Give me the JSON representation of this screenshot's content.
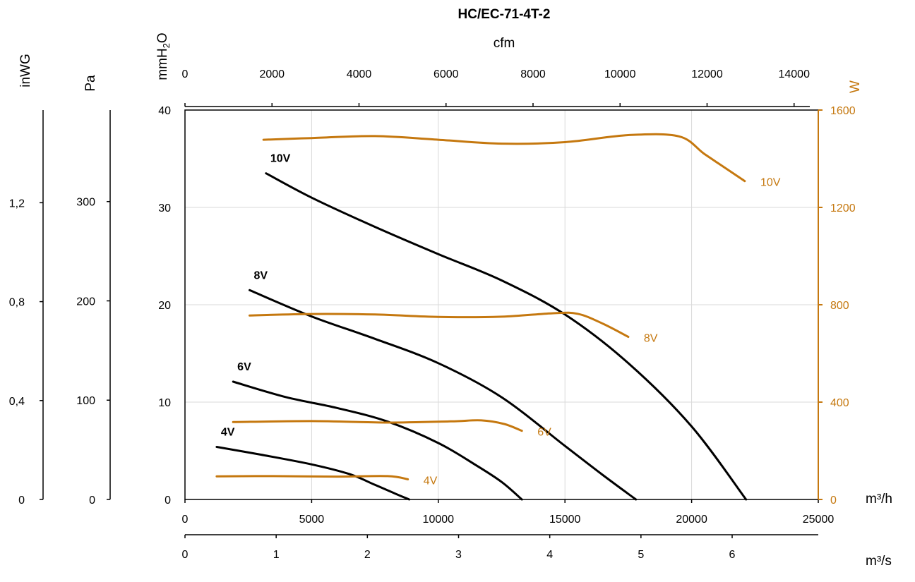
{
  "chart_data": {
    "type": "line",
    "title": "HC/EC-71-4T-2",
    "colors": {
      "pressure": "#000000",
      "power": "#c5780f"
    },
    "x_axes": {
      "primary": {
        "label": "m³/h",
        "range": [
          0,
          25000
        ],
        "ticks": [
          "0",
          "5000",
          "10000",
          "15000",
          "20000",
          "25000"
        ]
      },
      "secondary_ms": {
        "label": "m³/s",
        "ticks": [
          "0",
          "1",
          "2",
          "3",
          "4",
          "5",
          "6"
        ],
        "tick_values_m3h": [
          0,
          3600,
          7200,
          10800,
          14400,
          18000,
          21600
        ],
        "range_m3h": [
          0,
          25000
        ]
      },
      "top_cfm": {
        "label": "cfm",
        "ticks": [
          "0",
          "2000",
          "4000",
          "6000",
          "8000",
          "10000",
          "12000",
          "14000"
        ],
        "tick_values_m3h": [
          0,
          3398,
          6796,
          10194,
          13592,
          16990,
          20388,
          23786
        ],
        "range_m3h": [
          0,
          24400
        ]
      }
    },
    "y_axes": {
      "primary": {
        "label_main": "mmH",
        "label_sub": "2",
        "label_tail": "O",
        "range": [
          0,
          40
        ],
        "ticks": [
          "0",
          "10",
          "20",
          "30",
          "40"
        ]
      },
      "pa": {
        "label": "Pa",
        "ticks": [
          "0",
          "100",
          "200",
          "300"
        ],
        "tick_values_mmH2O": [
          0,
          10.2,
          20.4,
          30.6
        ],
        "range_mmH2O": [
          0,
          40
        ]
      },
      "inwg": {
        "label": "inWG",
        "ticks": [
          "0",
          "0,4",
          "0,8",
          "1,2"
        ],
        "tick_values_mmH2O": [
          0,
          10.16,
          20.32,
          30.48
        ],
        "range_mmH2O": [
          0,
          40
        ]
      },
      "power": {
        "label": "W",
        "range": [
          0,
          1600
        ],
        "ticks": [
          "0",
          "400",
          "800",
          "1200",
          "1600"
        ]
      }
    },
    "grid": true,
    "series": [
      {
        "name": "10V",
        "kind": "pressure",
        "x": [
          3200,
          5000,
          7500,
          10000,
          12500,
          15000,
          17500,
          20000,
          22150
        ],
        "y": [
          33.5,
          31,
          28,
          25.2,
          22.5,
          19,
          14,
          7.5,
          0
        ]
      },
      {
        "name": "8V",
        "kind": "pressure",
        "x": [
          2550,
          5000,
          7500,
          10000,
          12500,
          15000,
          16500,
          17800
        ],
        "y": [
          21.5,
          18.8,
          16.5,
          14,
          10.5,
          5.5,
          2.5,
          0
        ]
      },
      {
        "name": "6V",
        "kind": "pressure",
        "x": [
          1900,
          4000,
          6000,
          8000,
          10000,
          11500,
          12500,
          13300
        ],
        "y": [
          12.1,
          10.5,
          9.4,
          8,
          5.8,
          3.5,
          1.8,
          0
        ]
      },
      {
        "name": "4V",
        "kind": "pressure",
        "x": [
          1250,
          3000,
          5000,
          6500,
          7500,
          8300,
          8850
        ],
        "y": [
          5.4,
          4.6,
          3.6,
          2.6,
          1.5,
          0.6,
          0
        ]
      },
      {
        "name": "10V",
        "kind": "power",
        "x": [
          3100,
          5000,
          7500,
          10000,
          12500,
          15000,
          17500,
          19500,
          20500,
          21500,
          22100
        ],
        "y": [
          1478,
          1485,
          1493,
          1478,
          1462,
          1468,
          1497,
          1492,
          1420,
          1350,
          1308
        ]
      },
      {
        "name": "8V",
        "kind": "power",
        "x": [
          2550,
          5000,
          7500,
          10000,
          12500,
          14500,
          15500,
          16500,
          17500
        ],
        "y": [
          756,
          762,
          760,
          750,
          751,
          765,
          763,
          722,
          668
        ]
      },
      {
        "name": "6V",
        "kind": "power",
        "x": [
          1900,
          5000,
          8000,
          10500,
          11700,
          12600,
          13300
        ],
        "y": [
          318,
          322,
          316,
          321,
          325,
          310,
          282
        ]
      },
      {
        "name": "4V",
        "kind": "power",
        "x": [
          1250,
          3500,
          6000,
          8000,
          8800
        ],
        "y": [
          95,
          96,
          94,
          96,
          83
        ]
      }
    ]
  }
}
